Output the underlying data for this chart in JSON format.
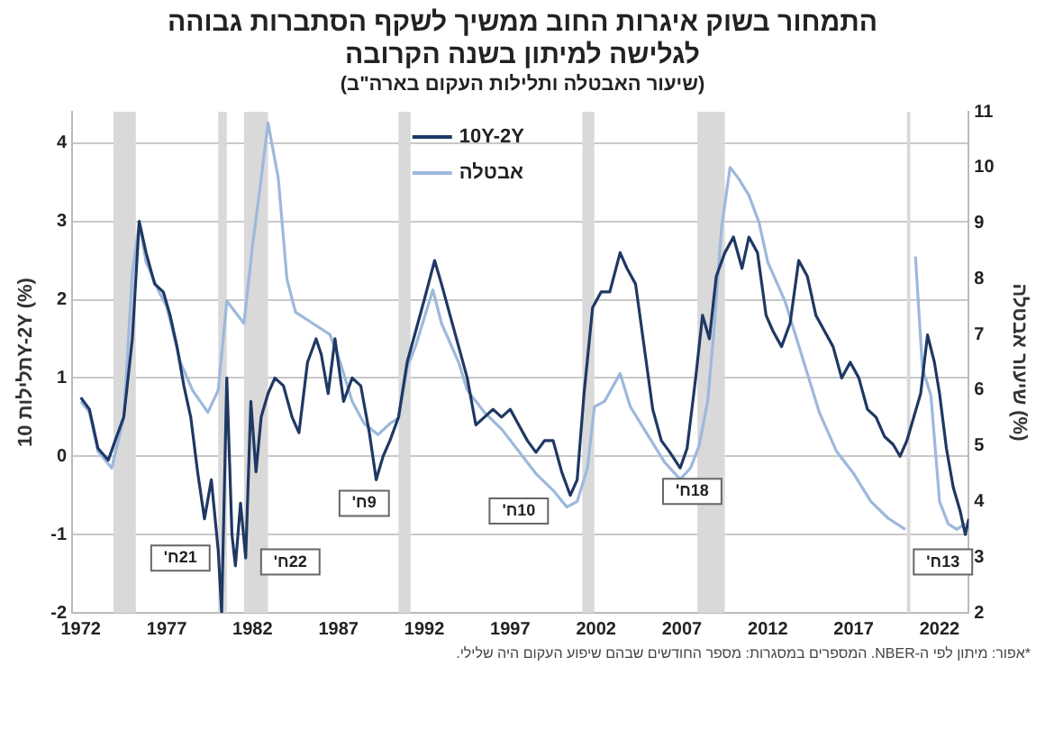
{
  "chart_data": {
    "type": "line",
    "title": "התמחור בשוק איגרות החוב ממשיך לשקף הסתברות גבוהה לגלישה למיתון בשנה הקרובה",
    "subtitle": "(שיעור האבטלה ותלילות העקום בארה\"ב)",
    "ylabel": "תלילות 10Y-2Y (%)",
    "y2label": "שיעור אבטלה (%)",
    "xlim": [
      1971.5,
      2023.7
    ],
    "xticks": [
      1972,
      1977,
      1982,
      1987,
      1992,
      1997,
      2002,
      2007,
      2012,
      2017,
      2022
    ],
    "ylim": [
      -2,
      4.4
    ],
    "yticks": [
      -2,
      -1,
      0,
      1,
      2,
      3,
      4
    ],
    "y2lim": [
      2,
      11
    ],
    "y2ticks": [
      2,
      3,
      4,
      5,
      6,
      7,
      8,
      9,
      10,
      11
    ],
    "grid": "y",
    "legend": "top",
    "marker": "none",
    "line_style": "solid",
    "series": [
      {
        "name": "10Y-2Y",
        "color": "#1f3864",
        "axis": "y",
        "x": [
          1972,
          1972.5,
          1973.0,
          1973.6,
          1974.0,
          1974.5,
          1975.0,
          1975.4,
          1975.8,
          1976.3,
          1976.8,
          1977.2,
          1977.6,
          1978.0,
          1978.4,
          1978.8,
          1979.2,
          1979.6,
          1980.0,
          1980.2,
          1980.5,
          1980.8,
          1981.0,
          1981.3,
          1981.6,
          1981.9,
          1982.2,
          1982.5,
          1982.9,
          1983.3,
          1983.8,
          1984.3,
          1984.7,
          1985.2,
          1985.7,
          1986.0,
          1986.4,
          1986.8,
          1987.3,
          1987.8,
          1988.3,
          1988.8,
          1989.2,
          1989.6,
          1990.0,
          1990.5,
          1991.0,
          1991.5,
          1992.0,
          1992.6,
          1993.0,
          1993.5,
          1994.0,
          1994.5,
          1995.0,
          1995.5,
          1996.0,
          1996.5,
          1997.0,
          1997.5,
          1998.0,
          1998.5,
          1999.0,
          1999.5,
          2000.0,
          2000.5,
          2000.9,
          2001.3,
          2001.8,
          2002.3,
          2002.8,
          2003.4,
          2003.8,
          2004.3,
          2004.8,
          2005.3,
          2005.8,
          2006.3,
          2006.9,
          2007.3,
          2007.8,
          2008.2,
          2008.6,
          2009.0,
          2009.5,
          2010.0,
          2010.5,
          2010.9,
          2011.4,
          2011.9,
          2012.3,
          2012.8,
          2013.3,
          2013.8,
          2014.3,
          2014.8,
          2015.3,
          2015.8,
          2016.3,
          2016.8,
          2017.3,
          2017.8,
          2018.3,
          2018.8,
          2019.3,
          2019.7,
          2020.1,
          2020.5,
          2020.9,
          2021.3,
          2021.7,
          2022.0,
          2022.4,
          2022.8,
          2023.2,
          2023.5,
          2023.7
        ],
        "values": [
          0.75,
          0.6,
          0.1,
          -0.05,
          0.2,
          0.5,
          1.5,
          3.0,
          2.6,
          2.2,
          2.1,
          1.8,
          1.4,
          0.9,
          0.5,
          -0.2,
          -0.8,
          -0.3,
          -1.2,
          -2.0,
          1.0,
          -1.0,
          -1.4,
          -0.6,
          -1.3,
          0.7,
          -0.2,
          0.5,
          0.8,
          1.0,
          0.9,
          0.5,
          0.3,
          1.2,
          1.5,
          1.3,
          0.8,
          1.5,
          0.7,
          1.0,
          0.9,
          0.3,
          -0.3,
          0.0,
          0.2,
          0.5,
          1.2,
          1.6,
          2.0,
          2.5,
          2.2,
          1.8,
          1.4,
          1.0,
          0.4,
          0.5,
          0.6,
          0.5,
          0.6,
          0.4,
          0.2,
          0.05,
          0.2,
          0.2,
          -0.2,
          -0.5,
          -0.3,
          0.8,
          1.9,
          2.1,
          2.1,
          2.6,
          2.4,
          2.2,
          1.4,
          0.6,
          0.2,
          0.05,
          -0.15,
          0.1,
          1.0,
          1.8,
          1.5,
          2.3,
          2.6,
          2.8,
          2.4,
          2.8,
          2.6,
          1.8,
          1.6,
          1.4,
          1.7,
          2.5,
          2.3,
          1.8,
          1.6,
          1.4,
          1.0,
          1.2,
          1.0,
          0.6,
          0.5,
          0.25,
          0.15,
          0.0,
          0.2,
          0.5,
          0.8,
          1.55,
          1.2,
          0.8,
          0.1,
          -0.4,
          -0.7,
          -1.0,
          -0.8
        ]
      },
      {
        "name": "אבטלה",
        "color": "#9db8dc",
        "axis": "y2",
        "x": [
          1972,
          1972.5,
          1973,
          1973.8,
          1974.5,
          1975.0,
          1975.4,
          1975.8,
          1976.5,
          1977,
          1977.8,
          1978.5,
          1979.4,
          1980.0,
          1980.5,
          1981.0,
          1981.5,
          1982.0,
          1982.5,
          1982.9,
          1983.5,
          1984,
          1984.5,
          1985.5,
          1986.5,
          1987,
          1987.8,
          1988.5,
          1989.3,
          1990,
          1990.5,
          1991,
          1991.5,
          1992.5,
          1993,
          1994,
          1994.5,
          1995.5,
          1996.5,
          1997.5,
          1998.5,
          1999.5,
          2000.3,
          2000.9,
          2001.5,
          2001.9,
          2002.5,
          2003.4,
          2004,
          2005,
          2006,
          2006.9,
          2007.5,
          2008,
          2008.5,
          2008.9,
          2009.3,
          2009.8,
          2010.3,
          2010.9,
          2011.5,
          2012,
          2013,
          2014,
          2015,
          2016,
          2017,
          2018,
          2019,
          2020.0,
          2020.25,
          2020.6,
          2021.0,
          2021.5,
          2022,
          2022.5,
          2023,
          2023.5
        ],
        "values": [
          5.8,
          5.6,
          4.9,
          4.6,
          5.5,
          8.1,
          9.0,
          8.3,
          7.8,
          7.5,
          6.5,
          6.0,
          5.6,
          6.0,
          7.6,
          7.4,
          7.2,
          8.6,
          9.8,
          10.8,
          9.8,
          8.0,
          7.4,
          7.2,
          7.0,
          6.6,
          5.8,
          5.4,
          5.2,
          5.4,
          5.5,
          6.4,
          6.8,
          7.8,
          7.2,
          6.5,
          6.0,
          5.6,
          5.3,
          4.9,
          4.5,
          4.2,
          3.9,
          4.0,
          4.6,
          5.7,
          5.8,
          6.3,
          5.7,
          5.2,
          4.7,
          4.4,
          4.6,
          5.0,
          5.8,
          7.2,
          8.9,
          10.0,
          9.8,
          9.5,
          9.0,
          8.3,
          7.6,
          6.6,
          5.6,
          4.9,
          4.5,
          4.0,
          3.7,
          3.5,
          null,
          8.4,
          6.4,
          5.9,
          4.0,
          3.6,
          3.5,
          3.6
        ]
      }
    ],
    "bands": [
      {
        "axis": "x",
        "from": 1973.9,
        "to": 1975.2,
        "color": "#d9d9d9"
      },
      {
        "axis": "x",
        "from": 1980.0,
        "to": 1980.5,
        "color": "#d9d9d9"
      },
      {
        "axis": "x",
        "from": 1981.5,
        "to": 1982.9,
        "color": "#d9d9d9"
      },
      {
        "axis": "x",
        "from": 1990.5,
        "to": 1991.2,
        "color": "#d9d9d9"
      },
      {
        "axis": "x",
        "from": 2001.2,
        "to": 2001.9,
        "color": "#d9d9d9"
      },
      {
        "axis": "x",
        "from": 2007.9,
        "to": 2009.5,
        "color": "#d9d9d9"
      },
      {
        "axis": "x",
        "from": 2020.1,
        "to": 2020.3,
        "color": "#d9d9d9"
      }
    ],
    "annotations": [
      {
        "text": "21ח'",
        "x": 1977.8,
        "y": -1.3
      },
      {
        "text": "22ח'",
        "x": 1984.2,
        "y": -1.35
      },
      {
        "text": "9ח'",
        "x": 1988.5,
        "y": -0.6
      },
      {
        "text": "10ח'",
        "x": 1997.5,
        "y": -0.7
      },
      {
        "text": "18ח'",
        "x": 2007.6,
        "y": -0.45
      },
      {
        "text": "13ח'",
        "x": 2022.2,
        "y": -1.35
      },
      "*אפור: מיתון לפי ה-NBER. המספרים במסגרות: מספר החודשים שבהם שיפוע העקום היה שלילי."
    ]
  }
}
